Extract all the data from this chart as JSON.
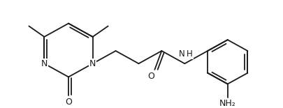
{
  "bg_color": "#ffffff",
  "line_color": "#1a1a1a",
  "lw": 1.3,
  "figsize": [
    4.06,
    1.55
  ],
  "dpi": 100,
  "xlim": [
    0,
    406
  ],
  "ylim": [
    0,
    155
  ]
}
